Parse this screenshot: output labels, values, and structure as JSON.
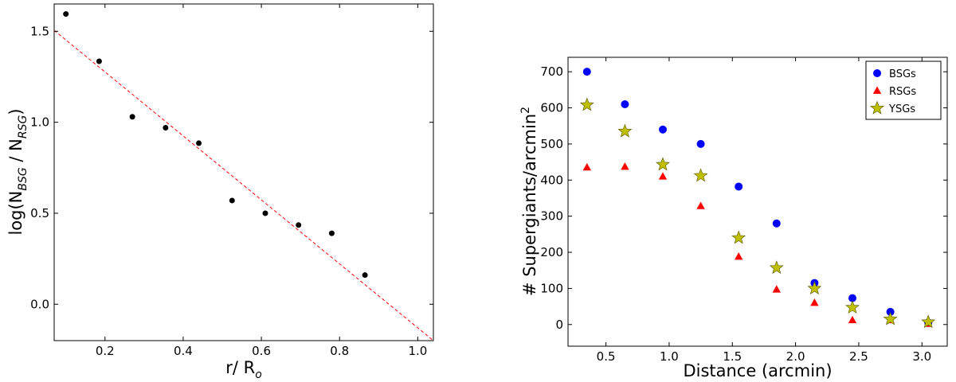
{
  "chart_data": [
    {
      "type": "scatter",
      "xlabel": "r/ R",
      "xlabel_sub": "o",
      "ylabel": "log(N",
      "ylabel_sub1": "BSG",
      "ylabel_mid": " / N",
      "ylabel_sub2": "RSG",
      "ylabel_end": ")",
      "xlim": [
        0.07,
        1.04
      ],
      "ylim": [
        -0.2,
        1.65
      ],
      "xticks": [
        0.2,
        0.4,
        0.6,
        0.8,
        1.0
      ],
      "xtick_labels": [
        "0.2",
        "0.4",
        "0.6",
        "0.8",
        "1.0"
      ],
      "yticks": [
        0.0,
        0.5,
        1.0,
        1.5
      ],
      "ytick_labels": [
        "0.0",
        "0.5",
        "1.0",
        "1.5"
      ],
      "grid": false,
      "series": [
        {
          "marker": "circle",
          "color": "#000000",
          "x": [
            0.1,
            0.185,
            0.27,
            0.355,
            0.44,
            0.525,
            0.61,
            0.695,
            0.78,
            0.865
          ],
          "y": [
            1.595,
            1.335,
            1.03,
            0.97,
            0.885,
            0.57,
            0.5,
            0.435,
            0.39,
            0.16
          ]
        }
      ],
      "fit_line": {
        "style": "dashed",
        "color": "#ff0000",
        "x": [
          0.07,
          1.04
        ],
        "y": [
          1.505,
          -0.2
        ]
      }
    },
    {
      "type": "scatter",
      "xlabel": "Distance (arcmin)",
      "ylabel": "# Supergiants/arcmin",
      "ylabel_sup": "2",
      "xlim": [
        0.2,
        3.2
      ],
      "ylim": [
        -60,
        740
      ],
      "xticks": [
        0.5,
        1.0,
        1.5,
        2.0,
        2.5,
        3.0
      ],
      "xtick_labels": [
        "0.5",
        "1.0",
        "1.5",
        "2.0",
        "2.5",
        "3.0"
      ],
      "yticks": [
        0,
        100,
        200,
        300,
        400,
        500,
        600,
        700
      ],
      "ytick_labels": [
        "0",
        "100",
        "200",
        "300",
        "400",
        "500",
        "600",
        "700"
      ],
      "grid": false,
      "legend": "top-right",
      "x": [
        0.35,
        0.65,
        0.95,
        1.25,
        1.55,
        1.85,
        2.15,
        2.45,
        2.75,
        3.05
      ],
      "series": [
        {
          "name": "BSGs",
          "marker": "circle",
          "color": "#0000ff",
          "values": [
            700,
            610,
            540,
            500,
            382,
            280,
            115,
            73,
            35,
            5
          ]
        },
        {
          "name": "RSGs",
          "marker": "triangle",
          "color": "#ff0000",
          "values": [
            435,
            437,
            410,
            328,
            188,
            97,
            60,
            12,
            12,
            2
          ]
        },
        {
          "name": "YSGs",
          "marker": "star",
          "color": "#bfbf00",
          "values": [
            608,
            535,
            443,
            412,
            240,
            157,
            100,
            47,
            15,
            7
          ]
        }
      ]
    }
  ]
}
